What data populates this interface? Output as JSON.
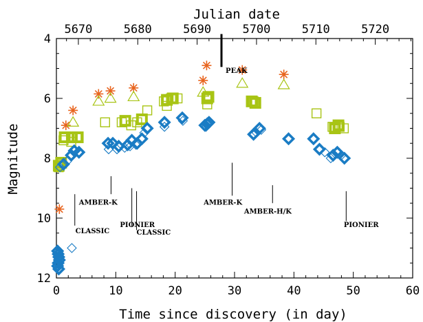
{
  "chart_data": {
    "type": "scatter",
    "xlabel": "Time since discovery (in day)",
    "ylabel": "Magnitude",
    "top_xlabel": "Julian date",
    "xlim": [
      0,
      60
    ],
    "ylim": [
      12,
      4
    ],
    "y_inverted": true,
    "top_axis_offset": 5666.3,
    "x_ticks": [
      0,
      10,
      20,
      30,
      40,
      50,
      60
    ],
    "x_ticklabels": [
      "0",
      "10",
      "20",
      "30",
      "40",
      "50",
      "60"
    ],
    "y_ticks": [
      4,
      6,
      8,
      10,
      12
    ],
    "y_ticklabels": [
      "4",
      "6",
      "8",
      "10",
      "12"
    ],
    "top_ticks": [
      5670,
      5680,
      5690,
      5700,
      5710,
      5720
    ],
    "top_ticklabels": [
      "5670",
      "5680",
      "5690",
      "5700",
      "5710",
      "5720"
    ],
    "colors": {
      "orange": "#e8641e",
      "green": "#a8c414",
      "blue": "#1a7cc4"
    },
    "series": [
      {
        "marker": "asterisk",
        "color": "orange",
        "points": [
          [
            0.5,
            9.7
          ],
          [
            1.6,
            6.9
          ],
          [
            2.8,
            6.4
          ],
          [
            7.1,
            5.85
          ],
          [
            9.1,
            5.75
          ],
          [
            13.0,
            5.65
          ],
          [
            24.7,
            5.4
          ],
          [
            25.3,
            4.9
          ],
          [
            31.3,
            5.05
          ],
          [
            38.3,
            5.2
          ]
        ]
      },
      {
        "marker": "triangle-open",
        "color": "green",
        "points": [
          [
            2.8,
            6.8
          ],
          [
            7.1,
            6.1
          ],
          [
            9.1,
            6.0
          ],
          [
            13.0,
            5.95
          ],
          [
            24.7,
            5.8
          ],
          [
            31.3,
            5.5
          ],
          [
            38.3,
            5.55
          ]
        ]
      },
      {
        "marker": "square-open",
        "color": "green",
        "points": [
          [
            0.4,
            8.3
          ],
          [
            1.2,
            7.4
          ],
          [
            2.5,
            7.45
          ],
          [
            3.4,
            7.3
          ],
          [
            8.2,
            6.8
          ],
          [
            11.0,
            6.8
          ],
          [
            12.6,
            6.9
          ],
          [
            13.6,
            6.8
          ],
          [
            15.3,
            6.4
          ],
          [
            18.1,
            6.1
          ],
          [
            18.6,
            6.25
          ],
          [
            19.3,
            6.0
          ],
          [
            20.4,
            6.0
          ],
          [
            25.4,
            6.2
          ],
          [
            33.2,
            6.1
          ],
          [
            43.8,
            6.5
          ],
          [
            46.5,
            6.95
          ],
          [
            47.7,
            6.95
          ],
          [
            48.4,
            7.0
          ]
        ]
      },
      {
        "marker": "square-filled",
        "color": "green",
        "points": [
          [
            0.4,
            8.25
          ],
          [
            0.8,
            8.15
          ],
          [
            1.4,
            7.3
          ],
          [
            2.6,
            7.3
          ],
          [
            3.6,
            7.3
          ],
          [
            11.6,
            6.75
          ],
          [
            14.4,
            6.7
          ],
          [
            18.6,
            6.05
          ],
          [
            19.6,
            6.0
          ],
          [
            25.4,
            6.0
          ],
          [
            25.6,
            5.95
          ],
          [
            32.9,
            6.1
          ],
          [
            33.5,
            6.15
          ],
          [
            46.9,
            7.0
          ],
          [
            47.5,
            6.9
          ]
        ]
      },
      {
        "marker": "diamond-open",
        "color": "blue",
        "points": [
          [
            0.6,
            8.3
          ],
          [
            1.8,
            8.1
          ],
          [
            2.6,
            11.0
          ],
          [
            8.8,
            7.7
          ],
          [
            10.2,
            7.7
          ],
          [
            11.5,
            7.65
          ],
          [
            12.4,
            7.6
          ],
          [
            13.4,
            7.55
          ],
          [
            14.8,
            7.15
          ],
          [
            18.2,
            6.95
          ],
          [
            21.3,
            6.75
          ],
          [
            25.2,
            6.95
          ],
          [
            33.7,
            7.15
          ],
          [
            34.5,
            7.05
          ],
          [
            45.2,
            7.8
          ],
          [
            46.2,
            8.0
          ],
          [
            48.0,
            7.9
          ]
        ]
      },
      {
        "marker": "diamond-filled",
        "color": "blue",
        "points": [
          [
            0.2,
            11.1
          ],
          [
            0.3,
            11.2
          ],
          [
            0.4,
            11.3
          ],
          [
            0.5,
            11.4
          ],
          [
            0.3,
            11.5
          ],
          [
            0.2,
            11.6
          ],
          [
            0.4,
            11.7
          ],
          [
            1.2,
            8.2
          ],
          [
            2.5,
            7.9
          ],
          [
            3.0,
            7.75
          ],
          [
            3.8,
            7.8
          ],
          [
            8.7,
            7.5
          ],
          [
            9.5,
            7.5
          ],
          [
            10.5,
            7.6
          ],
          [
            12.0,
            7.55
          ],
          [
            12.7,
            7.4
          ],
          [
            13.6,
            7.5
          ],
          [
            14.4,
            7.35
          ],
          [
            15.3,
            7.0
          ],
          [
            18.2,
            6.8
          ],
          [
            21.2,
            6.65
          ],
          [
            25.0,
            6.9
          ],
          [
            25.4,
            6.85
          ],
          [
            25.7,
            6.8
          ],
          [
            33.2,
            7.2
          ],
          [
            34.2,
            7.0
          ],
          [
            39.1,
            7.35
          ],
          [
            43.3,
            7.35
          ],
          [
            44.3,
            7.7
          ],
          [
            46.6,
            7.9
          ],
          [
            47.3,
            7.8
          ],
          [
            48.5,
            8.0
          ]
        ]
      }
    ],
    "annotations": [
      {
        "text": "PEAK",
        "line": [
          27.8,
          3.85,
          4.95
        ],
        "label_at": [
          28.5,
          5.15
        ],
        "thick": true
      },
      {
        "text": "CLASSIC",
        "line": [
          3.1,
          9.2,
          10.25
        ],
        "label_at": [
          3.2,
          10.5
        ]
      },
      {
        "text": "AMBER-K",
        "line": [
          9.2,
          8.6,
          9.2
        ],
        "label_at": [
          3.8,
          9.55
        ]
      },
      {
        "text": "PIONIER",
        "line": [
          12.7,
          9.0,
          10.3
        ],
        "label_at": [
          10.7,
          10.3
        ]
      },
      {
        "text": "CLASSIC",
        "line": [
          13.5,
          9.1,
          10.4
        ],
        "label_at": [
          13.5,
          10.55
        ]
      },
      {
        "text": "AMBER-K",
        "line": [
          29.6,
          8.15,
          9.25
        ],
        "label_at": [
          24.8,
          9.55
        ]
      },
      {
        "text": "AMBER-H/K",
        "line": [
          36.4,
          8.9,
          9.5
        ],
        "label_at": [
          31.6,
          9.85
        ]
      },
      {
        "text": "PIONIER",
        "line": [
          48.8,
          9.1,
          10.1
        ],
        "label_at": [
          48.4,
          10.3
        ]
      }
    ]
  }
}
